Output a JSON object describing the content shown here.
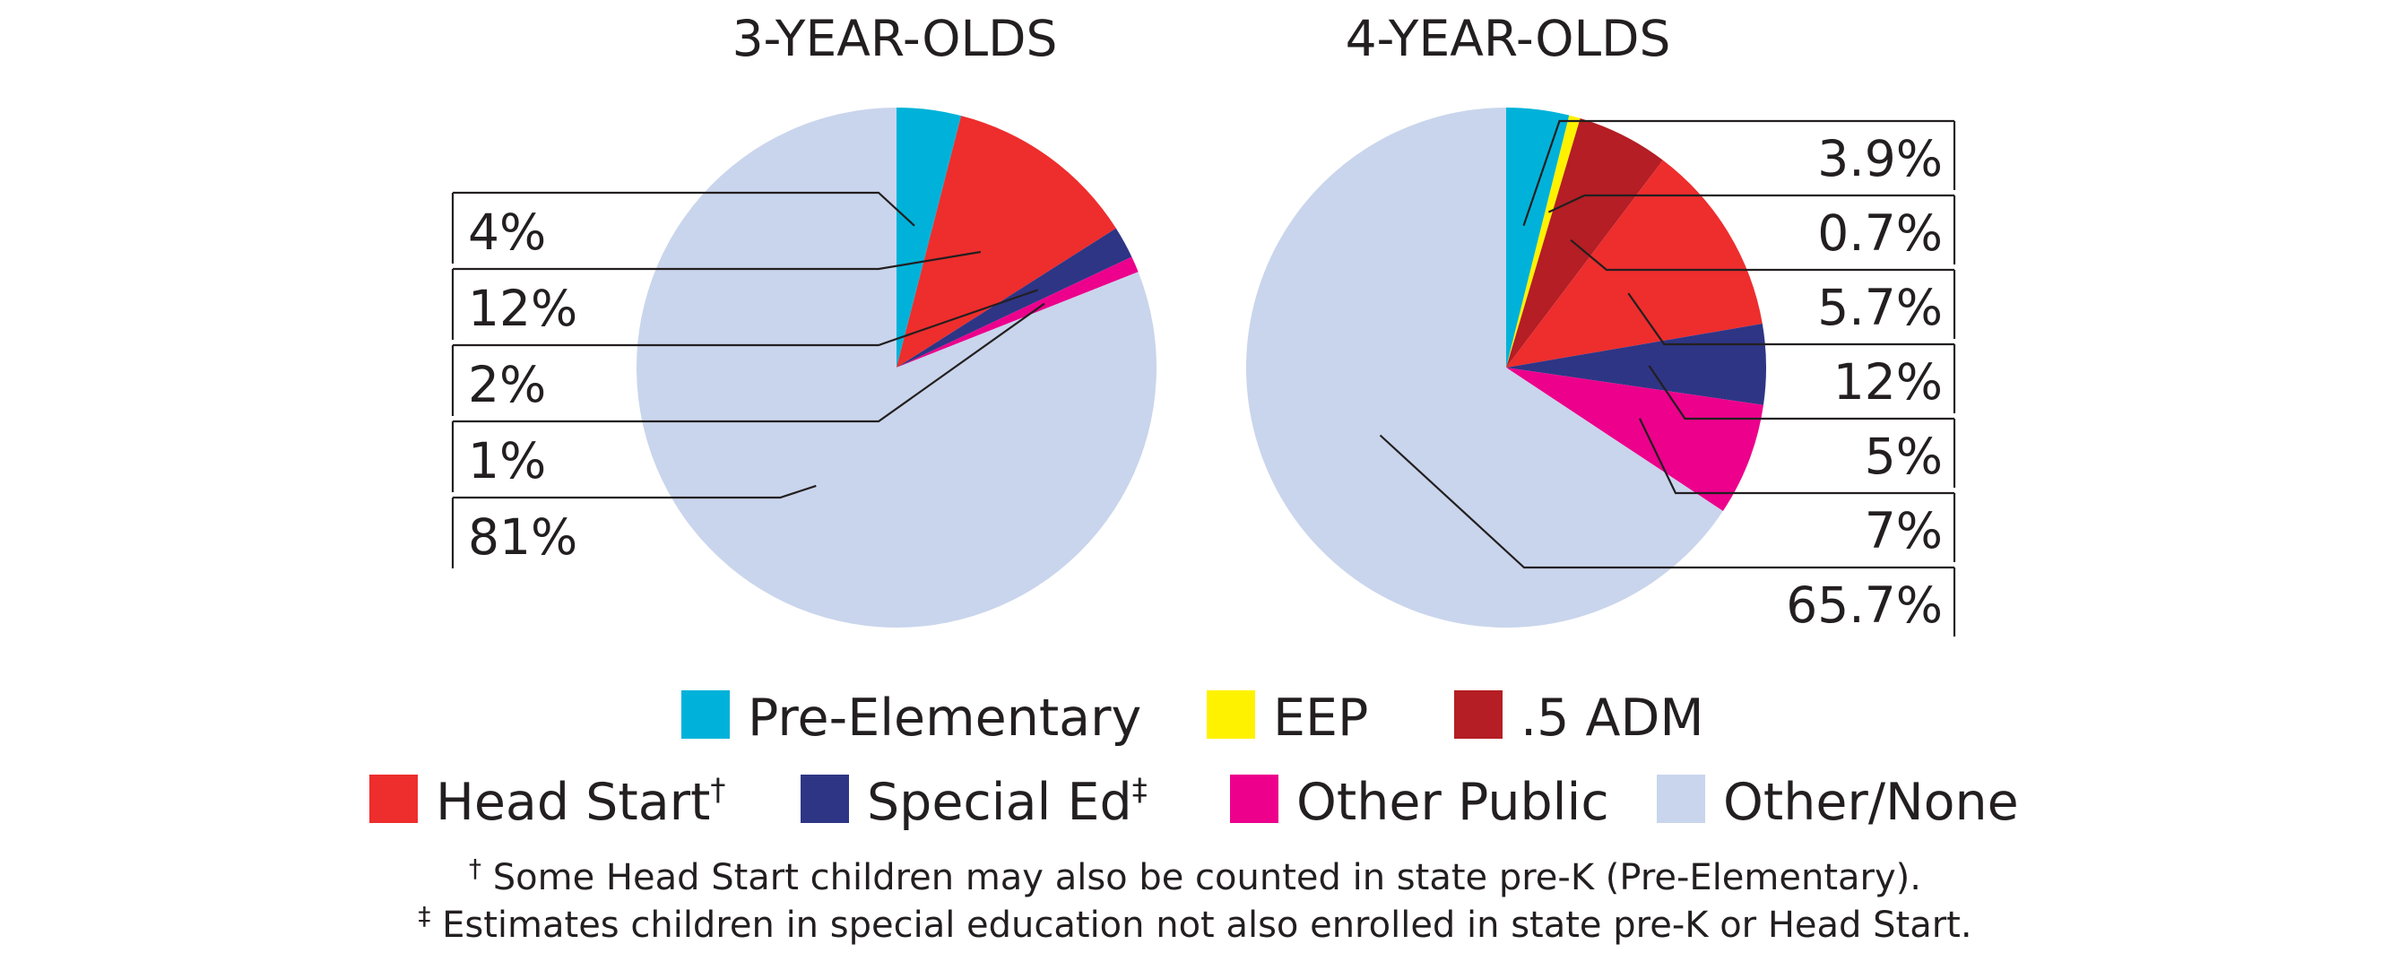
{
  "colors": {
    "pre_elementary": "#00b2d9",
    "eep": "#fff200",
    "half_adm": "#b41e24",
    "head_start": "#ee2d2d",
    "special_ed": "#2e3585",
    "other_public": "#ec008c",
    "other_none": "#c9d5ec"
  },
  "chart_data": [
    {
      "type": "pie",
      "title": "3-YEAR-OLDS",
      "slices": [
        {
          "key": "pre_elementary",
          "value": 4,
          "label": "4%"
        },
        {
          "key": "head_start",
          "value": 12,
          "label": "12%"
        },
        {
          "key": "special_ed",
          "value": 2,
          "label": "2%"
        },
        {
          "key": "other_public",
          "value": 1,
          "label": "1%"
        },
        {
          "key": "other_none",
          "value": 81,
          "label": "81%"
        }
      ],
      "label_side": "left"
    },
    {
      "type": "pie",
      "title": "4-YEAR-OLDS",
      "slices": [
        {
          "key": "pre_elementary",
          "value": 3.9,
          "label": "3.9%"
        },
        {
          "key": "eep",
          "value": 0.7,
          "label": "0.7%"
        },
        {
          "key": "half_adm",
          "value": 5.7,
          "label": "5.7%"
        },
        {
          "key": "head_start",
          "value": 12,
          "label": "12%"
        },
        {
          "key": "special_ed",
          "value": 5,
          "label": "5%"
        },
        {
          "key": "other_public",
          "value": 7,
          "label": "7%"
        },
        {
          "key": "other_none",
          "value": 65.7,
          "label": "65.7%"
        }
      ],
      "label_side": "right"
    }
  ],
  "legend": {
    "rows": [
      [
        {
          "key": "pre_elementary",
          "label": "Pre-Elementary",
          "mark": ""
        },
        {
          "key": "eep",
          "label": "EEP",
          "mark": ""
        },
        {
          "key": "half_adm",
          "label": ".5 ADM",
          "mark": ""
        }
      ],
      [
        {
          "key": "head_start",
          "label": "Head Start",
          "mark": "†"
        },
        {
          "key": "special_ed",
          "label": "Special Ed",
          "mark": "‡"
        },
        {
          "key": "other_public",
          "label": "Other Public",
          "mark": ""
        },
        {
          "key": "other_none",
          "label": "Other/None",
          "mark": ""
        }
      ]
    ]
  },
  "footnotes": [
    {
      "mark": "†",
      "text": "Some Head Start children may also be counted in state pre-K (Pre-Elementary)."
    },
    {
      "mark": "‡",
      "text": "Estimates children in special education not also enrolled in state pre-K or Head Start."
    }
  ]
}
